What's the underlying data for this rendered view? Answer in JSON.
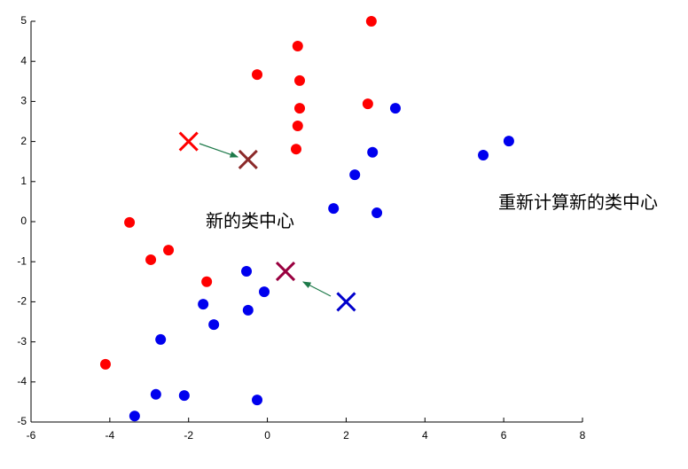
{
  "chart_data": {
    "type": "scatter",
    "xlim": [
      -6,
      8
    ],
    "ylim": [
      -5,
      5
    ],
    "xticks": [
      -6,
      -4,
      -2,
      0,
      2,
      4,
      6,
      8
    ],
    "yticks": [
      -5,
      -4,
      -3,
      -2,
      -1,
      0,
      1,
      2,
      3,
      4,
      5
    ],
    "annotations": [
      "新的类中心",
      "重新计算新的类中心"
    ],
    "series": [
      {
        "color": "#ff0000",
        "marker": "o",
        "x": [
          2.64,
          0.77,
          -0.26,
          0.82,
          0.82,
          2.55,
          0.77,
          0.73,
          -3.5,
          -2.51,
          -2.96,
          -1.54,
          -4.11
        ],
        "y": [
          5.0,
          4.38,
          3.67,
          3.52,
          2.83,
          2.94,
          2.39,
          1.81,
          -0.02,
          -0.71,
          -0.95,
          -1.5,
          -3.56
        ]
      },
      {
        "color": "#0000ee",
        "marker": "o",
        "x": [
          3.25,
          6.13,
          5.48,
          2.67,
          2.22,
          1.68,
          2.78,
          -0.53,
          -0.08,
          -1.63,
          -0.49,
          -1.36,
          -2.71,
          -2.83,
          -2.11,
          -0.26,
          -3.37
        ],
        "y": [
          2.83,
          2.01,
          1.66,
          1.73,
          1.17,
          0.33,
          0.22,
          -1.24,
          -1.75,
          -2.06,
          -2.21,
          -2.57,
          -2.94,
          -4.31,
          -4.34,
          -4.45,
          -4.85
        ]
      },
      {
        "color": "#ff0000",
        "marker": "x",
        "x": [
          -2
        ],
        "y": [
          2
        ]
      },
      {
        "color": "#8b2a2a",
        "marker": "x",
        "x": [
          -0.49
        ],
        "y": [
          1.55
        ]
      },
      {
        "color": "#0000cc",
        "marker": "x",
        "x": [
          2
        ],
        "y": [
          -2
        ]
      },
      {
        "color": "#99003f",
        "marker": "x",
        "x": [
          0.46
        ],
        "y": [
          -1.24
        ]
      }
    ]
  }
}
